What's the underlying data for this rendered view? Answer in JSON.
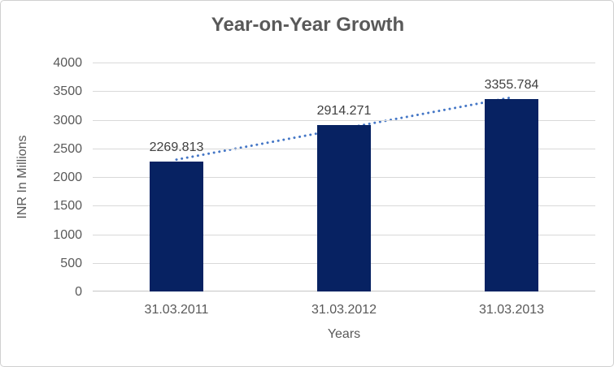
{
  "figure": {
    "background": "#ffffff",
    "border_color": "#d0d0d0"
  },
  "chart_data": {
    "type": "bar",
    "title": "Year-on-Year Growth",
    "categories": [
      "31.03.2011",
      "31.03.2012",
      "31.03.2013"
    ],
    "values": [
      2269.813,
      2914.271,
      3355.784
    ],
    "data_labels": [
      "2269.813",
      "2914.271",
      "3355.784"
    ],
    "xlabel": "Years",
    "ylabel": "INR In Millions",
    "ylim": [
      0,
      4000
    ],
    "ytick_step": 500,
    "ytick_labels": [
      "0",
      "500",
      "1000",
      "1500",
      "2000",
      "2500",
      "3000",
      "3500",
      "4000"
    ],
    "grid": true,
    "legend": false,
    "bar_color": "#072262",
    "trendline": {
      "type": "linear",
      "style": "dotted",
      "color": "#4577c6"
    },
    "colors": {
      "title_text": "#595959",
      "axis_text": "#595959",
      "data_label_text": "#404040",
      "gridline": "#d9d9d9",
      "axis_line": "#c6c6c6"
    }
  }
}
